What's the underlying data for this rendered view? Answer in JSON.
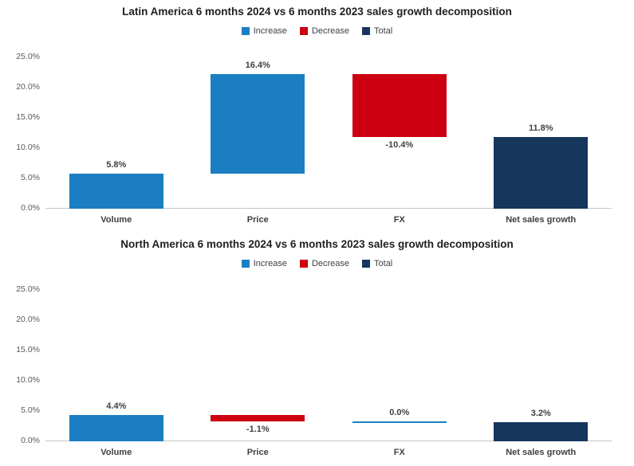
{
  "colors": {
    "increase": "#1b7ec3",
    "decrease": "#cc0011",
    "total": "#16365c",
    "baseline": "#c6c6c6",
    "tick_text": "#595959",
    "label_text": "#3f3f3f",
    "title_text": "#1f1f1f",
    "legend_text": "#404040"
  },
  "chart_data": [
    {
      "type": "bar",
      "subtype": "waterfall",
      "title": "Latin America 6 months 2024 vs 6 months 2023 sales growth decomposition",
      "legend": [
        {
          "label": "Increase",
          "type": "increase"
        },
        {
          "label": "Decrease",
          "type": "decrease"
        },
        {
          "label": "Total",
          "type": "total"
        }
      ],
      "legend_position": "top",
      "grid": false,
      "ylim": [
        0,
        25
      ],
      "y_ticks": [
        25,
        20,
        15,
        10,
        5,
        0
      ],
      "y_tick_labels": [
        "25.0%",
        "20.0%",
        "15.0%",
        "10.0%",
        "5.0%",
        "0.0%"
      ],
      "categories": [
        "Volume",
        "Price",
        "FX",
        "Net sales growth"
      ],
      "series": [
        {
          "name": "Sales growth decomposition",
          "values": [
            5.8,
            16.4,
            -10.4,
            11.8
          ],
          "bar_types": [
            "increase",
            "increase",
            "decrease",
            "total"
          ],
          "data_labels": [
            "5.8%",
            "16.4%",
            "-10.4%",
            "11.8%"
          ]
        }
      ]
    },
    {
      "type": "bar",
      "subtype": "waterfall",
      "title": "North America 6 months 2024 vs 6 months 2023 sales growth decomposition",
      "legend": [
        {
          "label": "Increase",
          "type": "increase"
        },
        {
          "label": "Decrease",
          "type": "decrease"
        },
        {
          "label": "Total",
          "type": "total"
        }
      ],
      "legend_position": "top",
      "grid": false,
      "ylim": [
        0,
        25
      ],
      "y_ticks": [
        25,
        20,
        15,
        10,
        5,
        0
      ],
      "y_tick_labels": [
        "25.0%",
        "20.0%",
        "15.0%",
        "10.0%",
        "5.0%",
        "0.0%"
      ],
      "categories": [
        "Volume",
        "Price",
        "FX",
        "Net sales growth"
      ],
      "series": [
        {
          "name": "Sales growth decomposition",
          "values": [
            4.4,
            -1.1,
            0.0,
            3.2
          ],
          "bar_types": [
            "increase",
            "decrease",
            "increase",
            "total"
          ],
          "data_labels": [
            "4.4%",
            "-1.1%",
            "0.0%",
            "3.2%"
          ]
        }
      ]
    }
  ]
}
